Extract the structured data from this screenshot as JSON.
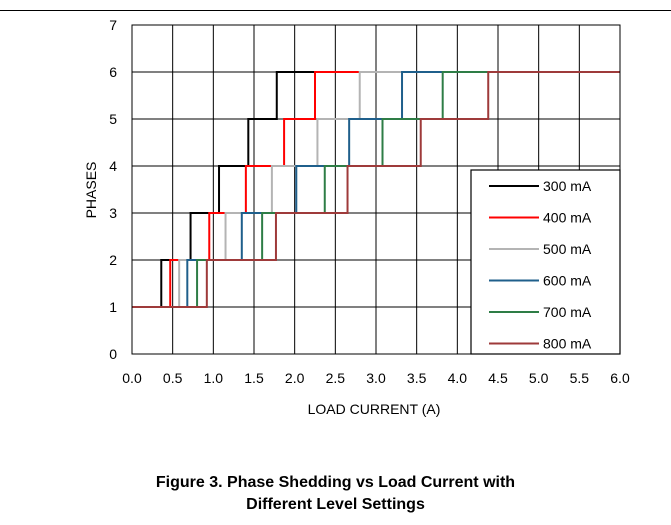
{
  "caption": {
    "line1": "Figure 3. Phase Shedding vs Load Current with",
    "line2": "Different Level Settings"
  },
  "chart_data": {
    "type": "line",
    "step": true,
    "title": "",
    "xlabel": "LOAD CURRENT (A)",
    "ylabel": "PHASES",
    "xlim": [
      0,
      6
    ],
    "ylim": [
      0,
      7
    ],
    "x_ticks": [
      "0.0",
      "0.5",
      "1.0",
      "1.5",
      "2.0",
      "2.5",
      "3.0",
      "3.5",
      "4.0",
      "4.5",
      "5.0",
      "5.5",
      "6.0"
    ],
    "y_ticks": [
      "0",
      "1",
      "2",
      "3",
      "4",
      "5",
      "6",
      "7"
    ],
    "grid": true,
    "legend_position": "bottom-right",
    "series": [
      {
        "name": "300 mA",
        "color": "#000000",
        "x": [
          0,
          0.36,
          0.72,
          1.07,
          1.43,
          1.78,
          6.0
        ],
        "y": [
          1,
          2,
          3,
          4,
          5,
          6,
          6
        ]
      },
      {
        "name": "400 mA",
        "color": "#ff0000",
        "x": [
          0,
          0.47,
          0.95,
          1.4,
          1.87,
          2.25,
          6.0
        ],
        "y": [
          1,
          2,
          3,
          4,
          5,
          6,
          6
        ]
      },
      {
        "name": "500 mA",
        "color": "#b4b4b4",
        "x": [
          0,
          0.58,
          1.15,
          1.72,
          2.28,
          2.8,
          6.0
        ],
        "y": [
          1,
          2,
          3,
          4,
          5,
          6,
          6
        ]
      },
      {
        "name": "600 mA",
        "color": "#1f5f8b",
        "x": [
          0,
          0.68,
          1.35,
          2.02,
          2.67,
          3.32,
          6.0
        ],
        "y": [
          1,
          2,
          3,
          4,
          5,
          6,
          6
        ]
      },
      {
        "name": "700 mA",
        "color": "#2e7d46",
        "x": [
          0,
          0.8,
          1.6,
          2.37,
          3.08,
          3.82,
          6.0
        ],
        "y": [
          1,
          2,
          3,
          4,
          5,
          6,
          6
        ]
      },
      {
        "name": "800 mA",
        "color": "#9e3a3a",
        "x": [
          0,
          0.92,
          1.77,
          2.65,
          3.55,
          4.38,
          6.0
        ],
        "y": [
          1,
          2,
          3,
          4,
          5,
          6,
          6
        ]
      }
    ]
  }
}
